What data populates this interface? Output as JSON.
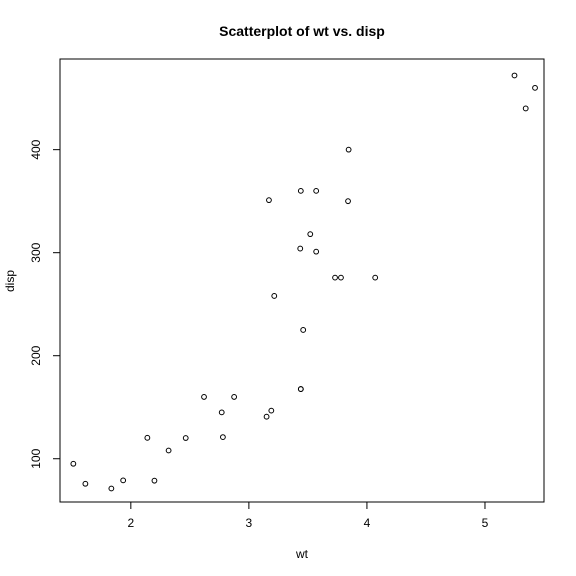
{
  "chart_data": {
    "type": "scatter",
    "title": "Scatterplot of wt vs. disp",
    "xlabel": "wt",
    "ylabel": "disp",
    "xlim": [
      1.4,
      5.5
    ],
    "ylim": [
      58,
      488
    ],
    "x_ticks": [
      2,
      3,
      4,
      5
    ],
    "y_ticks": [
      100,
      200,
      300,
      400
    ],
    "grid": false,
    "legend": "none",
    "point_color": "#000000",
    "series": [
      {
        "x": [
          2.62,
          2.875,
          2.32,
          3.215,
          3.44,
          3.46,
          3.57,
          3.19,
          3.15,
          3.44,
          3.44,
          4.07,
          3.73,
          3.78,
          5.25,
          5.424,
          5.345,
          2.2,
          1.615,
          1.835,
          2.465,
          3.52,
          3.435,
          3.84,
          3.845,
          1.935,
          2.14,
          1.513,
          3.17,
          2.77,
          3.57,
          2.78
        ],
        "y": [
          160.0,
          160.0,
          108.0,
          258.0,
          360.0,
          225.0,
          360.0,
          146.7,
          140.8,
          167.6,
          167.6,
          275.8,
          275.8,
          275.8,
          472.0,
          460.0,
          440.0,
          78.7,
          75.7,
          71.1,
          120.1,
          318.0,
          304.0,
          350.0,
          400.0,
          79.0,
          120.3,
          95.1,
          351.0,
          145.0,
          301.0,
          121.0
        ]
      }
    ]
  }
}
